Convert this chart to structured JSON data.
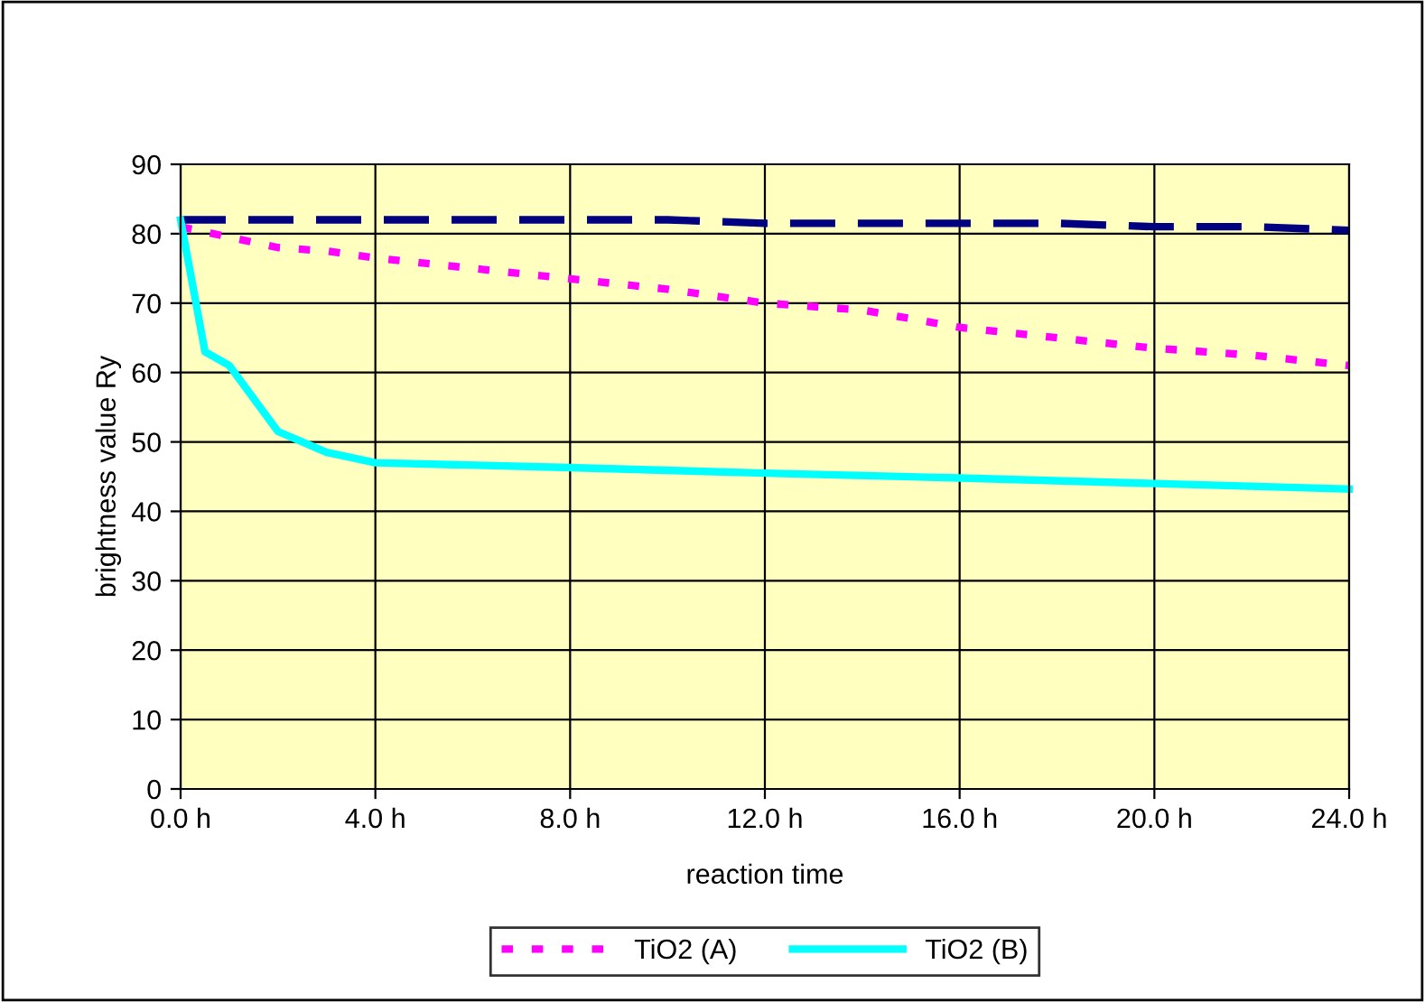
{
  "chart_data": {
    "type": "line",
    "xlabel": "reaction time",
    "ylabel": "brightness value Ry",
    "xlim": [
      0,
      24
    ],
    "xticks": [
      {
        "value": 0,
        "label": "0.0 h"
      },
      {
        "value": 4,
        "label": "4.0 h"
      },
      {
        "value": 8,
        "label": "8.0 h"
      },
      {
        "value": 12,
        "label": "12.0 h"
      },
      {
        "value": 16,
        "label": "16.0 h"
      },
      {
        "value": 20,
        "label": "20.0 h"
      },
      {
        "value": 24,
        "label": "24.0 h"
      }
    ],
    "ylim": [
      0,
      90
    ],
    "yticks": [
      0,
      10,
      20,
      30,
      40,
      50,
      60,
      70,
      80,
      90
    ],
    "grid": true,
    "legend": "bottom",
    "marker": "none",
    "series": [
      {
        "color": "#000080",
        "line_style": "dashed",
        "x": [
          0,
          4,
          8,
          10,
          12,
          16,
          18,
          20,
          22,
          24
        ],
        "values": [
          82,
          82,
          82,
          82,
          81.5,
          81.5,
          81.5,
          81,
          81,
          80.5
        ]
      },
      {
        "name": "TiO2 (A)",
        "color": "#ff00ff",
        "line_style": "dotted",
        "x": [
          0,
          1,
          2,
          3,
          4,
          6,
          8,
          10,
          12,
          14,
          16,
          18,
          20,
          22,
          24
        ],
        "values": [
          81,
          79.5,
          78,
          77.5,
          76.5,
          75,
          73.5,
          72,
          70,
          69,
          66.5,
          65,
          63.5,
          62.5,
          61
        ]
      },
      {
        "name": "TiO2 (B)",
        "color": "#00ffff",
        "line_style": "solid",
        "x": [
          0,
          0.5,
          1,
          2,
          3,
          4,
          8,
          12,
          16,
          20,
          24
        ],
        "values": [
          82,
          63,
          61,
          51.5,
          48.5,
          47,
          46.3,
          45.5,
          44.8,
          44,
          43.2
        ]
      }
    ]
  }
}
